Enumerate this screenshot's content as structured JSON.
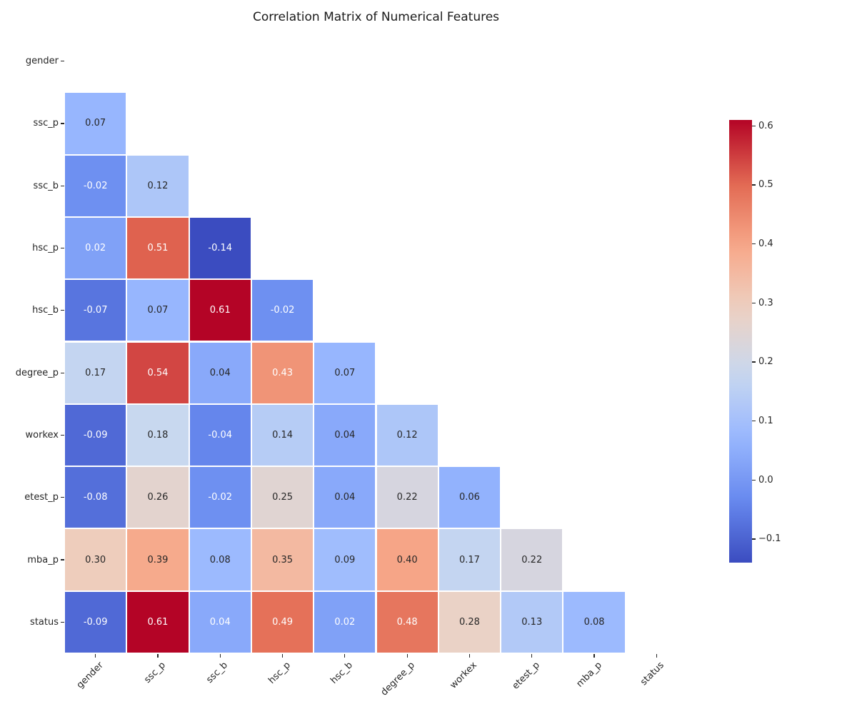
{
  "chart_data": {
    "type": "heatmap",
    "title": "Correlation Matrix of Numerical Features",
    "features": [
      "gender",
      "ssc_p",
      "ssc_b",
      "hsc_p",
      "hsc_b",
      "degree_p",
      "workex",
      "etest_p",
      "mba_p",
      "status"
    ],
    "mask": "upper triangle and diagonal hidden; annotated cells only where column index < row index",
    "colormap": "coolwarm",
    "vmin": -0.14,
    "vmax": 0.61,
    "value_format": "2 decimals",
    "grid": "white cell separators",
    "legend_position": "colorbar right",
    "rows": [
      {
        "label": "gender",
        "values": [],
        "text_colors": []
      },
      {
        "label": "ssc_p",
        "values": [
          0.07
        ],
        "text_colors": [
          "k"
        ]
      },
      {
        "label": "ssc_b",
        "values": [
          -0.02,
          0.12
        ],
        "text_colors": [
          "w",
          "k"
        ]
      },
      {
        "label": "hsc_p",
        "values": [
          0.02,
          0.51,
          -0.14
        ],
        "text_colors": [
          "w",
          "w",
          "w"
        ]
      },
      {
        "label": "hsc_b",
        "values": [
          -0.07,
          0.07,
          0.61,
          -0.02
        ],
        "text_colors": [
          "w",
          "k",
          "w",
          "w"
        ]
      },
      {
        "label": "degree_p",
        "values": [
          0.17,
          0.54,
          0.04,
          0.43,
          0.07
        ],
        "text_colors": [
          "k",
          "w",
          "k",
          "w",
          "k"
        ]
      },
      {
        "label": "workex",
        "values": [
          -0.09,
          0.18,
          -0.04,
          0.14,
          0.04,
          0.12
        ],
        "text_colors": [
          "w",
          "k",
          "w",
          "k",
          "k",
          "k"
        ]
      },
      {
        "label": "etest_p",
        "values": [
          -0.08,
          0.26,
          -0.02,
          0.25,
          0.04,
          0.22,
          0.06
        ],
        "text_colors": [
          "w",
          "k",
          "w",
          "k",
          "k",
          "k",
          "k"
        ]
      },
      {
        "label": "mba_p",
        "values": [
          0.3,
          0.39,
          0.08,
          0.35,
          0.09,
          0.4,
          0.17,
          0.22
        ],
        "text_colors": [
          "k",
          "k",
          "k",
          "k",
          "k",
          "k",
          "k",
          "k"
        ]
      },
      {
        "label": "status",
        "values": [
          -0.09,
          0.61,
          0.04,
          0.49,
          0.02,
          0.48,
          0.28,
          0.13,
          0.08
        ],
        "text_colors": [
          "w",
          "w",
          "w",
          "w",
          "w",
          "w",
          "k",
          "k",
          "k"
        ]
      }
    ],
    "colorbar": {
      "tick_labels": [
        "0.6",
        "0.5",
        "0.4",
        "0.3",
        "0.2",
        "0.1",
        "0.0",
        "−0.1"
      ],
      "tick_values": [
        0.6,
        0.5,
        0.4,
        0.3,
        0.2,
        0.1,
        0.0,
        -0.1
      ],
      "top_value": 0.61,
      "bottom_value": -0.14
    },
    "colors": {
      "cool_end": "#3b4cc0",
      "midpoint": "#dddddd",
      "warm_end": "#b40426",
      "annotation_dark": "#262626",
      "annotation_light": "#ffffff",
      "axis_text": "#262626",
      "background": "#ffffff"
    }
  }
}
